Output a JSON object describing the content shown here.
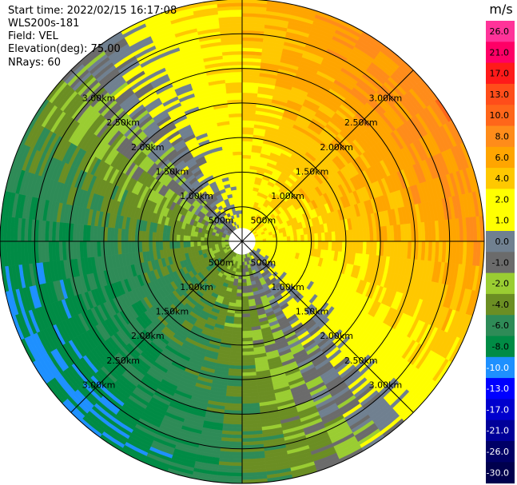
{
  "header": {
    "start_time": "Start time: 2022/02/15 16:17:08",
    "device": "WLS200s-181",
    "field": "Field: VEL",
    "elevation": "Elevation(deg): 75.00",
    "nrays": "NRays: 60"
  },
  "chart_data": {
    "type": "heatmap",
    "projection": "polar-ppi",
    "field": "VEL",
    "unit": "m/s",
    "elevation_deg": 75.0,
    "nrays": 60,
    "max_range_km": 3.5,
    "range_ring_labels": [
      "500m",
      "1.00km",
      "1.50km",
      "2.00km",
      "2.50km",
      "3.00km"
    ],
    "range_rings_km": [
      0.5,
      1.0,
      1.5,
      2.0,
      2.5,
      3.0
    ],
    "gate_spacing_km": 0.05,
    "sector_count": 8,
    "colorbar": {
      "title": "m/s",
      "tick_labels": [
        "26.0",
        "21.0",
        "17.0",
        "13.0",
        "10.0",
        "8.0",
        "6.0",
        "4.0",
        "2.0",
        "1.0",
        "0.0",
        "-1.0",
        "-2.0",
        "-4.0",
        "-6.0",
        "-8.0",
        "-10.0",
        "-13.0",
        "-17.0",
        "-21.0",
        "-26.0",
        "-30.0"
      ],
      "colors": [
        "#ff3399",
        "#ff0066",
        "#ff1a1a",
        "#ff4d1a",
        "#ff661a",
        "#ff8c1a",
        "#ffa500",
        "#ffc800",
        "#ffff00",
        "#ffff00",
        "#708090",
        "#6b6b6b",
        "#9acd32",
        "#6b8e23",
        "#2e8b57",
        "#008b45",
        "#1e90ff",
        "#0000ff",
        "#0000cd",
        "#000099",
        "#000066",
        "#00004d"
      ]
    },
    "velocity_model": {
      "center_direction_deg": 55,
      "amplitude_inner_mps": 2.5,
      "amplitude_outer_mps": 9.0,
      "offset_mps": 0.3
    }
  }
}
